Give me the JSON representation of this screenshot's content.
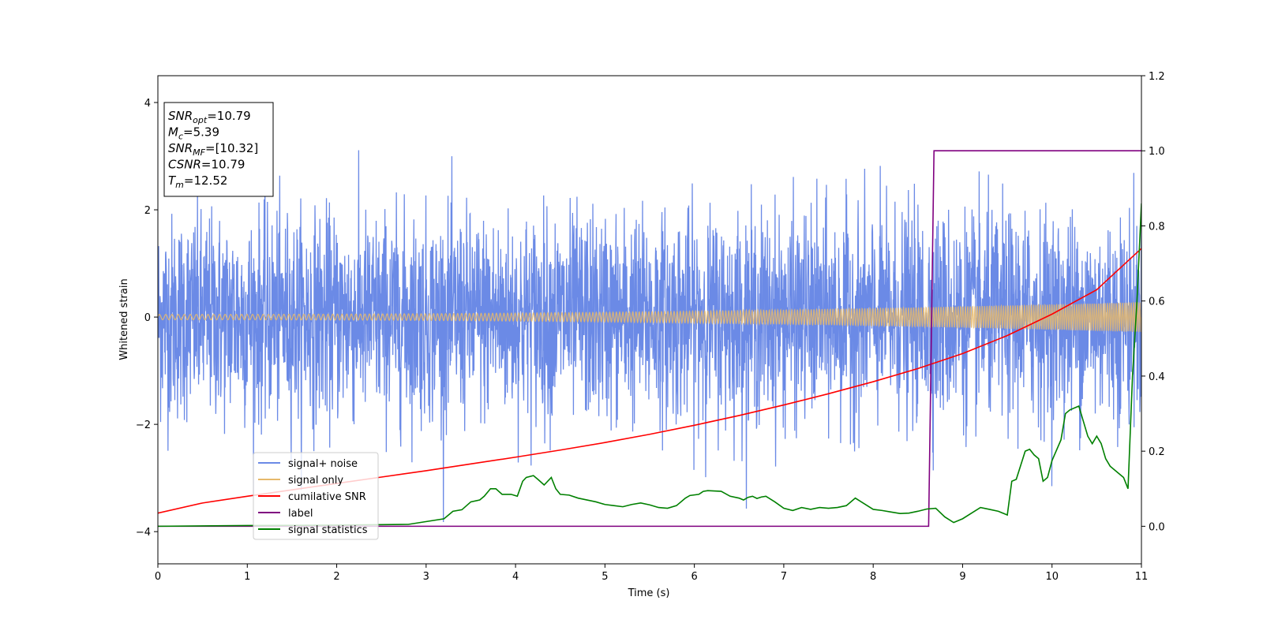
{
  "chart_data": {
    "type": "line",
    "xlabel": "Time (s)",
    "ylabel": "Whitened strain",
    "xlim": [
      0,
      11
    ],
    "ylim_left": [
      -4.6,
      4.5
    ],
    "ylim_right": [
      -0.1,
      1.2
    ],
    "x_ticks": [
      0,
      1,
      2,
      3,
      4,
      5,
      6,
      7,
      8,
      9,
      10,
      11
    ],
    "y_ticks_left": [
      4,
      2,
      0,
      -2,
      -4
    ],
    "y_ticks_right": [
      1.2,
      1.0,
      0.8,
      0.6,
      0.4,
      0.2,
      0.0
    ],
    "grid": false,
    "legend_position": "lower-left",
    "annotation_box": {
      "lines": [
        {
          "sym": "SNR",
          "sub": "opt",
          "value": "=10.79"
        },
        {
          "sym": "M",
          "sub": "c",
          "value": "=5.39"
        },
        {
          "sym": "SNR",
          "sub": "MF",
          "value": "=[10.32]"
        },
        {
          "sym": "CSNR",
          "sub": "",
          "value": "=10.79"
        },
        {
          "sym": "T",
          "sub": "m",
          "value": "=12.52"
        }
      ]
    },
    "series": [
      {
        "name": "signal+ noise",
        "axis": "left",
        "color": "#6b8ae6",
        "kind": "noise",
        "sigma": 0.95,
        "approx_range": [
          -4.1,
          4.1
        ]
      },
      {
        "name": "signal only",
        "axis": "left",
        "color": "#e6b96b",
        "kind": "chirp",
        "amplitude_start": 0.05,
        "amplitude_end": 0.28
      },
      {
        "name": "cumilative SNR",
        "axis": "right",
        "color": "#ff0000",
        "x": [
          0,
          0.5,
          1,
          1.5,
          2,
          2.5,
          3,
          3.5,
          4,
          4.5,
          5,
          5.5,
          6,
          6.5,
          7,
          7.5,
          8,
          8.5,
          9,
          9.5,
          10,
          10.5,
          11
        ],
        "y": [
          0.035,
          0.062,
          0.08,
          0.097,
          0.114,
          0.131,
          0.148,
          0.166,
          0.184,
          0.203,
          0.223,
          0.245,
          0.269,
          0.295,
          0.323,
          0.353,
          0.385,
          0.42,
          0.46,
          0.508,
          0.565,
          0.63,
          0.74
        ]
      },
      {
        "name": "label",
        "axis": "right",
        "color": "#800080",
        "x": [
          0,
          8.62,
          8.68,
          11
        ],
        "y": [
          0,
          0,
          1.0,
          1.0
        ]
      },
      {
        "name": "signal statistics",
        "axis": "right",
        "color": "#008000",
        "x": [
          0,
          1,
          2,
          2.8,
          3.2,
          3.3,
          3.4,
          3.5,
          3.6,
          3.65,
          3.72,
          3.78,
          3.85,
          3.95,
          4.02,
          4.08,
          4.12,
          4.2,
          4.25,
          4.32,
          4.4,
          4.45,
          4.5,
          4.6,
          4.7,
          4.8,
          4.9,
          5.0,
          5.1,
          5.2,
          5.3,
          5.4,
          5.5,
          5.6,
          5.7,
          5.8,
          5.9,
          5.95,
          6.05,
          6.1,
          6.15,
          6.3,
          6.4,
          6.5,
          6.55,
          6.6,
          6.65,
          6.7,
          6.75,
          6.8,
          6.9,
          7.0,
          7.1,
          7.2,
          7.3,
          7.4,
          7.5,
          7.6,
          7.7,
          7.8,
          7.9,
          8.0,
          8.1,
          8.2,
          8.3,
          8.4,
          8.5,
          8.6,
          8.7,
          8.8,
          8.9,
          9.0,
          9.1,
          9.2,
          9.3,
          9.4,
          9.5,
          9.55,
          9.6,
          9.7,
          9.75,
          9.8,
          9.85,
          9.9,
          9.95,
          10.0,
          10.1,
          10.15,
          10.2,
          10.3,
          10.35,
          10.4,
          10.45,
          10.5,
          10.55,
          10.6,
          10.65,
          10.7,
          10.75,
          10.8,
          10.85,
          10.9,
          10.95,
          11.0
        ],
        "y": [
          0.0,
          0.002,
          0.003,
          0.005,
          0.02,
          0.04,
          0.044,
          0.065,
          0.07,
          0.08,
          0.1,
          0.1,
          0.085,
          0.085,
          0.08,
          0.12,
          0.13,
          0.135,
          0.125,
          0.11,
          0.13,
          0.1,
          0.085,
          0.083,
          0.075,
          0.07,
          0.065,
          0.058,
          0.055,
          0.052,
          0.058,
          0.062,
          0.057,
          0.05,
          0.048,
          0.055,
          0.075,
          0.082,
          0.085,
          0.093,
          0.095,
          0.093,
          0.08,
          0.075,
          0.07,
          0.077,
          0.08,
          0.074,
          0.078,
          0.08,
          0.065,
          0.048,
          0.042,
          0.05,
          0.045,
          0.05,
          0.048,
          0.05,
          0.055,
          0.075,
          0.06,
          0.045,
          0.042,
          0.038,
          0.034,
          0.035,
          0.04,
          0.046,
          0.048,
          0.025,
          0.01,
          0.02,
          0.035,
          0.05,
          0.045,
          0.04,
          0.03,
          0.12,
          0.125,
          0.2,
          0.205,
          0.19,
          0.18,
          0.12,
          0.13,
          0.175,
          0.23,
          0.3,
          0.31,
          0.32,
          0.28,
          0.24,
          0.22,
          0.24,
          0.22,
          0.18,
          0.16,
          0.15,
          0.14,
          0.13,
          0.1,
          0.4,
          0.6,
          0.86
        ]
      }
    ]
  }
}
